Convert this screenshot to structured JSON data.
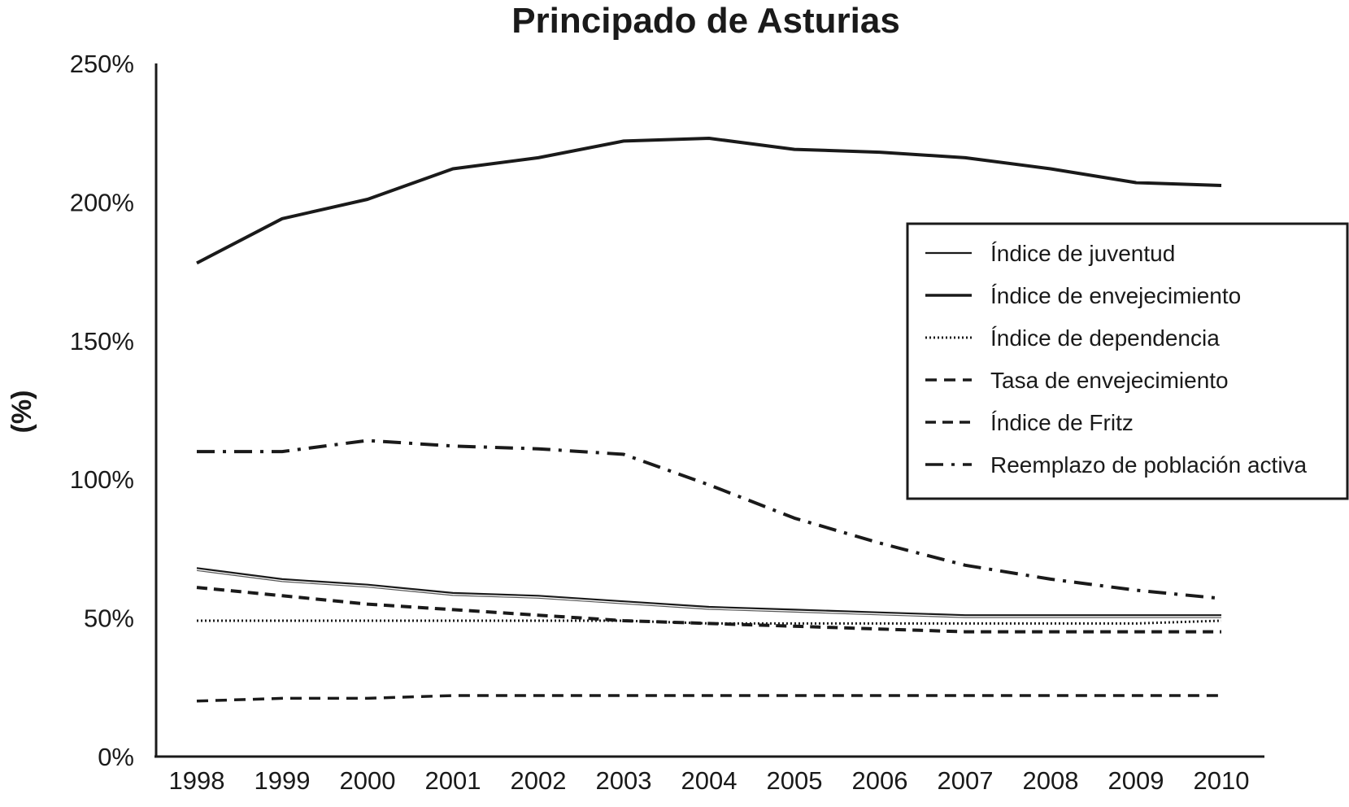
{
  "chart_data": {
    "type": "line",
    "title": "Principado de Asturias",
    "ylabel": "(%)",
    "xlabel": "",
    "x": [
      "1998",
      "1999",
      "2000",
      "2001",
      "2002",
      "2003",
      "2004",
      "2005",
      "2006",
      "2007",
      "2008",
      "2009",
      "2010"
    ],
    "ylim": [
      0,
      250
    ],
    "yticks": [
      "0%",
      "50%",
      "100%",
      "150%",
      "200%",
      "250%"
    ],
    "grid": false,
    "legend_position": "right",
    "series": [
      {
        "name": "Índice de juventud",
        "style": "solid-thin",
        "values": [
          68,
          64,
          62,
          59,
          58,
          56,
          54,
          53,
          52,
          51,
          51,
          51,
          51
        ]
      },
      {
        "name": "Índice de envejecimiento",
        "style": "solid-thick",
        "values": [
          178,
          194,
          201,
          212,
          216,
          222,
          223,
          219,
          218,
          216,
          212,
          207,
          206
        ]
      },
      {
        "name": "Índice de dependencia",
        "style": "dotted",
        "values": [
          49,
          49,
          49,
          49,
          49,
          49,
          48,
          48,
          48,
          48,
          48,
          48,
          49
        ]
      },
      {
        "name": "Tasa de envejecimiento",
        "style": "dashed",
        "values": [
          20,
          21,
          21,
          22,
          22,
          22,
          22,
          22,
          22,
          22,
          22,
          22,
          22
        ]
      },
      {
        "name": "Índice de Fritz",
        "style": "dashed-heavy",
        "values": [
          61,
          58,
          55,
          53,
          51,
          49,
          48,
          47,
          46,
          45,
          45,
          45,
          45
        ]
      },
      {
        "name": "Reemplazo de población activa",
        "style": "dash-dot",
        "values": [
          110,
          110,
          114,
          112,
          111,
          109,
          98,
          86,
          77,
          69,
          64,
          60,
          57
        ]
      }
    ]
  }
}
